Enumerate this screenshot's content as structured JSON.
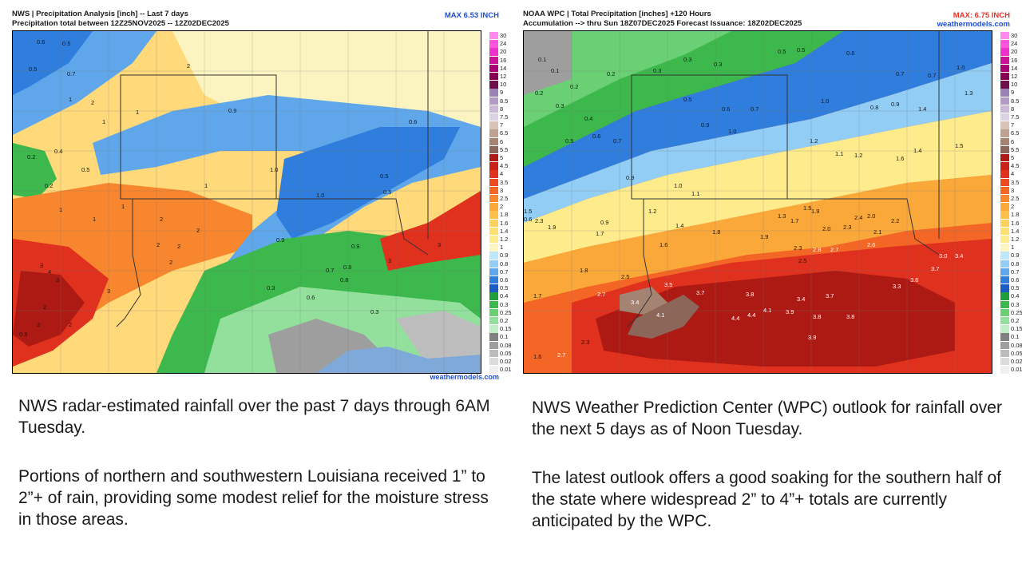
{
  "left_map": {
    "title_line1": "NWS | Precipitation Analysis [inch] -- Last 7 days",
    "title_line2": "Precipitation total between 12Z25NOV2025 -- 12Z02DEC2025",
    "max_label": "MAX 6.53 INCH",
    "credit": "weathermodels.com",
    "accent_color": "#1f4fcf",
    "values": [
      {
        "v": "0.6"
      },
      {
        "v": "0.5"
      },
      {
        "v": "0.5"
      },
      {
        "v": "0.7"
      },
      {
        "v": "1"
      },
      {
        "v": "2"
      },
      {
        "v": "2"
      },
      {
        "v": "1"
      },
      {
        "v": "1"
      },
      {
        "v": "0.9"
      },
      {
        "v": "0.2"
      },
      {
        "v": "0.4"
      },
      {
        "v": "0.5"
      },
      {
        "v": "0.2"
      },
      {
        "v": "1"
      },
      {
        "v": "1.0"
      },
      {
        "v": "1.0"
      },
      {
        "v": "0.9"
      },
      {
        "v": "0.6"
      },
      {
        "v": "0.5"
      },
      {
        "v": "0.5"
      },
      {
        "v": "1"
      },
      {
        "v": "1"
      },
      {
        "v": "2"
      },
      {
        "v": "2"
      },
      {
        "v": "2"
      },
      {
        "v": "3"
      },
      {
        "v": "3"
      },
      {
        "v": "4"
      },
      {
        "v": "3"
      },
      {
        "v": "3"
      },
      {
        "v": "2"
      },
      {
        "v": "2"
      },
      {
        "v": "0.9"
      },
      {
        "v": "0.9"
      },
      {
        "v": "0.8"
      },
      {
        "v": "0.7"
      },
      {
        "v": "0.6"
      },
      {
        "v": "0.3"
      },
      {
        "v": "0.3"
      },
      {
        "v": "3"
      },
      {
        "v": "3"
      },
      {
        "v": "2"
      },
      {
        "v": "0.9"
      },
      {
        "v": "1"
      },
      {
        "v": "2"
      }
    ]
  },
  "right_map": {
    "title_line1": "NOAA WPC | Total Precipitation [inches] +120 Hours",
    "title_line2": "Accumulation --> thru Sun 18Z07DEC2025   Forecast Issuance: 18Z02DEC2025",
    "max_label": "MAX: 6.75 INCH",
    "site_label": "weathermodels.com",
    "max_color": "#e0342b",
    "site_color": "#1f4fcf",
    "values": [
      {
        "v": "0.1"
      },
      {
        "v": "0.1"
      },
      {
        "v": "0.2"
      },
      {
        "v": "0.2"
      },
      {
        "v": "0.3"
      },
      {
        "v": "0.3"
      },
      {
        "v": "0.3"
      },
      {
        "v": "0.5"
      },
      {
        "v": "0.5"
      },
      {
        "v": "0.6"
      },
      {
        "v": "0.7"
      },
      {
        "v": "0.7"
      },
      {
        "v": "1.0"
      },
      {
        "v": "1.3"
      },
      {
        "v": "0.2"
      },
      {
        "v": "0.3"
      },
      {
        "v": "0.4"
      },
      {
        "v": "0.5"
      },
      {
        "v": "0.6"
      },
      {
        "v": "0.7"
      },
      {
        "v": "0.8"
      },
      {
        "v": "0.9"
      },
      {
        "v": "1.0"
      },
      {
        "v": "1.2"
      },
      {
        "v": "1.4"
      },
      {
        "v": "0.5"
      },
      {
        "v": "0.6"
      },
      {
        "v": "0.7"
      },
      {
        "v": "0.9"
      },
      {
        "v": "1.0"
      },
      {
        "v": "1.1"
      },
      {
        "v": "1.2"
      },
      {
        "v": "1.4"
      },
      {
        "v": "1.5"
      },
      {
        "v": "1.6"
      },
      {
        "v": "0.8"
      },
      {
        "v": "1.0"
      },
      {
        "v": "1.1"
      },
      {
        "v": "1.3"
      },
      {
        "v": "1.5"
      },
      {
        "v": "1.7"
      },
      {
        "v": "1.9"
      },
      {
        "v": "2.0"
      },
      {
        "v": "2.2"
      },
      {
        "v": "0.9"
      },
      {
        "v": "1.2"
      },
      {
        "v": "1.4"
      },
      {
        "v": "1.6"
      },
      {
        "v": "1.8"
      },
      {
        "v": "1.9"
      },
      {
        "v": "2.0"
      },
      {
        "v": "2.3"
      },
      {
        "v": "2.4"
      },
      {
        "v": "2.1"
      },
      {
        "v": "1.7"
      },
      {
        "v": "2.3"
      },
      {
        "v": "2.5"
      },
      {
        "v": "2.8"
      },
      {
        "v": "2.7"
      },
      {
        "v": "2.6"
      },
      {
        "v": "3.0"
      },
      {
        "v": "3.4"
      },
      {
        "v": "1.8"
      },
      {
        "v": "2.5"
      },
      {
        "v": "3.5"
      },
      {
        "v": "3.7"
      },
      {
        "v": "3.8"
      },
      {
        "v": "3.4"
      },
      {
        "v": "3.7"
      },
      {
        "v": "3.3"
      },
      {
        "v": "3.6"
      },
      {
        "v": "3.7"
      },
      {
        "v": "2.7"
      },
      {
        "v": "3.4"
      },
      {
        "v": "4.1"
      },
      {
        "v": "4.4"
      },
      {
        "v": "4.4"
      },
      {
        "v": "4.1"
      },
      {
        "v": "3.9"
      },
      {
        "v": "3.8"
      },
      {
        "v": "3.8"
      },
      {
        "v": "3.9"
      },
      {
        "v": "2.3"
      },
      {
        "v": "2.7"
      },
      {
        "v": "1.6"
      },
      {
        "v": "1.7"
      },
      {
        "v": "1.5"
      },
      {
        "v": "0.6"
      },
      {
        "v": "2.3"
      },
      {
        "v": "1.9"
      }
    ]
  },
  "legend": {
    "labels": [
      "30",
      "24",
      "20",
      "16",
      "14",
      "12",
      "10",
      "9",
      "8.5",
      "8",
      "7.5",
      "7",
      "6.5",
      "6",
      "5.5",
      "5",
      "4.5",
      "4",
      "3.5",
      "3",
      "2.5",
      "2",
      "1.8",
      "1.6",
      "1.4",
      "1.2",
      "1",
      "0.9",
      "0.8",
      "0.7",
      "0.6",
      "0.5",
      "0.4",
      "0.3",
      "0.25",
      "0.2",
      "0.15",
      "0.1",
      "0.08",
      "0.05",
      "0.02",
      "0.01"
    ],
    "colors": [
      "#ff88ee",
      "#ff55dd",
      "#ee33cc",
      "#cc1199",
      "#aa0077",
      "#880055",
      "#70104a",
      "#9a82b6",
      "#b49ac6",
      "#cbb8d6",
      "#dcd0e3",
      "#d8c3b8",
      "#c0a090",
      "#a58372",
      "#8c6658",
      "#ad1a14",
      "#c92218",
      "#e0301e",
      "#ec4a22",
      "#f46626",
      "#f8862e",
      "#fba83a",
      "#fdc04a",
      "#fed05c",
      "#fee070",
      "#feec8c",
      "#fbf6c2",
      "#bfe6fb",
      "#92cdf5",
      "#5fa7ea",
      "#2f7ddc",
      "#1a5cc4",
      "#1f9e3a",
      "#3cb84c",
      "#6ad074",
      "#92e09c",
      "#bfeec4",
      "#808080",
      "#9e9e9e",
      "#bdbdbd",
      "#dcdcdc",
      "#f0f0f0"
    ]
  },
  "captions": {
    "left_1": "NWS radar-estimated rainfall over the past 7 days through 6AM Tuesday.",
    "left_2": "Portions of northern and southwestern Louisiana received 1” to 2”+ of rain, providing some modest relief for the moisture stress in those areas.",
    "right_1": "NWS Weather Prediction Center (WPC) outlook for rainfall over the next 5 days as of Noon Tuesday.",
    "right_2": "The latest outlook offers a good soaking for the southern half of the state where widespread 2” to 4”+ totals are currently anticipated by the WPC."
  }
}
